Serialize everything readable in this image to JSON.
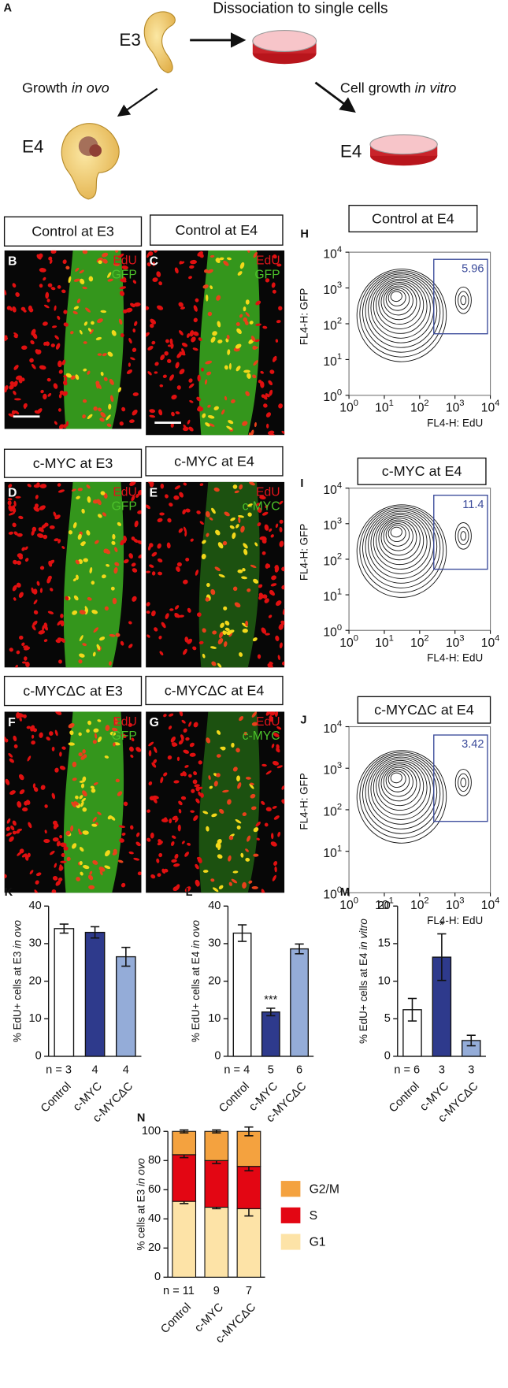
{
  "panel_a": {
    "letter": "A",
    "stage_e3": "E3",
    "dissociation": "Dissociation to  single cells",
    "growth_in_ovo": "Growth ",
    "growth_in_ovo_italic": "in ovo",
    "cell_growth": "Cell growth ",
    "cell_growth_italic": "in vitro",
    "stage_e4_ovo": "E4",
    "stage_e4_vitro": "E4"
  },
  "images": [
    {
      "letter": "B",
      "title": "Control at E3",
      "stain1": "EdU",
      "stain2": "GFP",
      "scale_bar": true
    },
    {
      "letter": "C",
      "title": "Control at E4",
      "stain1": "EdU",
      "stain2": "GFP",
      "scale_bar": true
    },
    {
      "letter": "D",
      "title": "c-MYC at E3",
      "stain1": "EdU",
      "stain2": "GFP",
      "scale_bar": false
    },
    {
      "letter": "E",
      "title": "c-MYC at E4",
      "stain1": "EdU",
      "stain2": "c-MYC",
      "scale_bar": false
    },
    {
      "letter": "F",
      "title": "c-MYCΔC at E3",
      "stain1": "EdU",
      "stain2": "GFP",
      "scale_bar": false
    },
    {
      "letter": "G",
      "title": "c-MYCΔC at E4",
      "stain1": "EdU",
      "stain2": "c-MYC",
      "scale_bar": false
    }
  ],
  "flow_plots": [
    {
      "letter": "H",
      "title": "Control at E4",
      "gate_value": 5.96,
      "xlabel": "FL4-H: EdU",
      "ylabel": "FL4-H: GFP",
      "tick_base": "10",
      "tick_exponents": [
        0,
        1,
        2,
        3,
        4
      ]
    },
    {
      "letter": "I",
      "title": "c-MYC at E4",
      "gate_value": 11.4,
      "xlabel": "FL4-H: EdU",
      "ylabel": "FL4-H: GFP",
      "tick_base": "10",
      "tick_exponents": [
        0,
        1,
        2,
        3,
        4
      ]
    },
    {
      "letter": "J",
      "title": "c-MYCΔC at E4",
      "gate_value": 3.42,
      "xlabel": "FL4-H: EdU",
      "ylabel": "FL4-H: GFP",
      "tick_base": "10",
      "tick_exponents": [
        0,
        1,
        2,
        3,
        4
      ]
    }
  ],
  "chart_data": [
    {
      "type": "bar",
      "letter": "K",
      "ylabel": "% EdU+ cells at E3 ",
      "ylabel_italic": "in ovo",
      "categories": [
        "Control",
        "c-MYC",
        "c-MYCΔC"
      ],
      "n_labels": [
        "n = 3",
        "4",
        "4"
      ],
      "values": [
        34,
        33,
        26.5
      ],
      "errors": [
        1.2,
        1.5,
        2.5
      ],
      "colors": [
        "#ffffff",
        "#2e3a8c",
        "#94acd8"
      ],
      "ylim": [
        0,
        40
      ],
      "yticks": [
        0,
        10,
        20,
        30,
        40
      ]
    },
    {
      "type": "bar",
      "letter": "L",
      "ylabel": "% EdU+ cells at E4 ",
      "ylabel_italic": "in ovo",
      "categories": [
        "Control",
        "c-MYC",
        "c-MYCΔC"
      ],
      "n_labels": [
        "n = 4",
        "5",
        "6"
      ],
      "values": [
        32.8,
        11.8,
        28.6
      ],
      "errors": [
        2.2,
        1.0,
        1.3
      ],
      "colors": [
        "#ffffff",
        "#2e3a8c",
        "#94acd8"
      ],
      "significance": [
        null,
        "***",
        null
      ],
      "ylim": [
        0,
        40
      ],
      "yticks": [
        0,
        10,
        20,
        30,
        40
      ]
    },
    {
      "type": "bar",
      "letter": "M",
      "ylabel": "% EdU+ cells at E4 ",
      "ylabel_italic": "in vitro",
      "categories": [
        "Control",
        "c-MYC",
        "c-MYCΔC"
      ],
      "n_labels": [
        "n = 6",
        "3",
        "3"
      ],
      "values": [
        6.2,
        13.2,
        2.1
      ],
      "errors": [
        1.5,
        3.1,
        0.7
      ],
      "colors": [
        "#ffffff",
        "#2e3a8c",
        "#94acd8"
      ],
      "significance": [
        null,
        "*",
        null
      ],
      "ylim": [
        0,
        20
      ],
      "yticks": [
        0,
        5,
        10,
        15,
        20
      ]
    },
    {
      "type": "stacked_bar",
      "letter": "N",
      "ylabel": "% cells  at E3 ",
      "ylabel_italic": "in ovo",
      "categories": [
        "Control",
        "c-MYC",
        "c-MYCΔC"
      ],
      "n_labels": [
        "n = 11",
        "9",
        "7"
      ],
      "series": [
        {
          "name": "G1",
          "color": "#fde3a7",
          "values": [
            52,
            48,
            47
          ],
          "errors": [
            1.5,
            1,
            5
          ]
        },
        {
          "name": "S",
          "color": "#e30613",
          "values": [
            32,
            32,
            29
          ],
          "errors": [
            2,
            2,
            3
          ]
        },
        {
          "name": "G2/M",
          "color": "#f4a23f",
          "values": [
            16,
            20,
            24
          ],
          "errors": [
            1,
            1,
            3
          ]
        }
      ],
      "ylim": [
        0,
        100
      ],
      "yticks": [
        0,
        20,
        40,
        60,
        80,
        100
      ],
      "legend": "right"
    }
  ]
}
